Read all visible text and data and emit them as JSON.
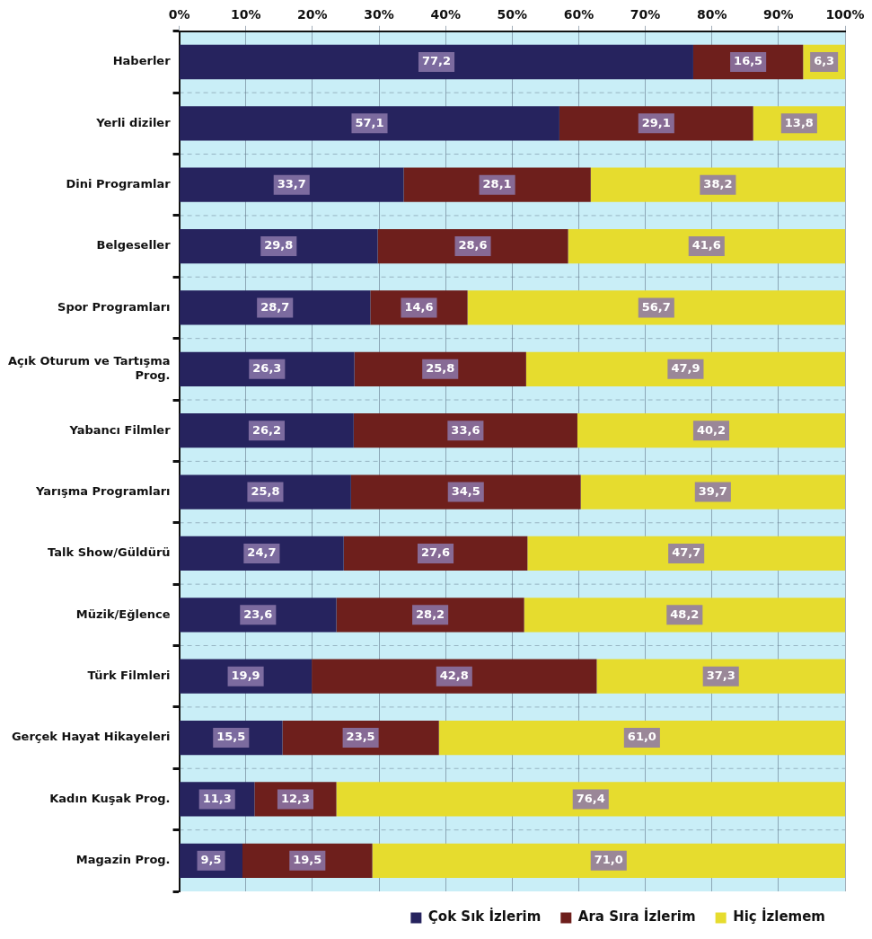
{
  "chart_data": {
    "type": "bar",
    "orientation": "horizontal",
    "stacked": true,
    "categories": [
      "Haberler",
      "Yerli diziler",
      "Dini Programlar",
      "Belgeseller",
      "Spor Programları",
      "Açık Oturum ve Tartışma Prog.",
      "Yabancı Filmler",
      "Yarışma Programları",
      "Talk Show/Güldürü",
      "Müzik/Eğlence",
      "Türk Filmleri",
      "Gerçek Hayat Hikayeleri",
      "Kadın Kuşak Prog.",
      "Magazin Prog."
    ],
    "series": [
      {
        "name": "Çok Sık İzlerim",
        "color": "#26235e",
        "values": [
          77.2,
          57.1,
          33.7,
          29.8,
          28.7,
          26.3,
          26.2,
          25.8,
          24.7,
          23.6,
          19.9,
          15.5,
          11.3,
          9.5
        ],
        "value_labels": [
          "77,2",
          "57,1",
          "33,7",
          "29,8",
          "28,7",
          "26,3",
          "26,2",
          "25,8",
          "24,7",
          "23,6",
          "19,9",
          "15,5",
          "11,3",
          "9,5"
        ]
      },
      {
        "name": "Ara Sıra İzlerim",
        "color": "#6e1f1c",
        "values": [
          16.5,
          29.1,
          28.1,
          28.6,
          14.6,
          25.8,
          33.6,
          34.5,
          27.6,
          28.2,
          42.8,
          23.5,
          12.3,
          19.5
        ],
        "value_labels": [
          "16,5",
          "29,1",
          "28,1",
          "28,6",
          "14,6",
          "25,8",
          "33,6",
          "34,5",
          "27,6",
          "28,2",
          "42,8",
          "23,5",
          "12,3",
          "19,5"
        ]
      },
      {
        "name": "Hiç İzlemem",
        "color": "#e6dc2e",
        "values": [
          6.3,
          13.8,
          38.2,
          41.6,
          56.7,
          47.9,
          40.2,
          39.7,
          47.7,
          48.2,
          37.3,
          61.0,
          76.4,
          71.0
        ],
        "value_labels": [
          "6,3",
          "13,8",
          "38,2",
          "41,6",
          "56,7",
          "47,9",
          "40,2",
          "39,7",
          "47,7",
          "48,2",
          "37,3",
          "61,0",
          "76,4",
          "71,0"
        ]
      }
    ],
    "xlim": [
      0,
      100
    ],
    "xticks": [
      {
        "value": 0,
        "label": "0%"
      },
      {
        "value": 10,
        "label": "10%"
      },
      {
        "value": 20,
        "label": "20%"
      },
      {
        "value": 30,
        "label": "30%"
      },
      {
        "value": 40,
        "label": "40%"
      },
      {
        "value": 50,
        "label": "50%"
      },
      {
        "value": 60,
        "label": "60%"
      },
      {
        "value": 70,
        "label": "70%"
      },
      {
        "value": 80,
        "label": "80%"
      },
      {
        "value": 90,
        "label": "90%"
      },
      {
        "value": 100,
        "label": "100%"
      }
    ],
    "grid": "x",
    "legend": "bottom"
  }
}
